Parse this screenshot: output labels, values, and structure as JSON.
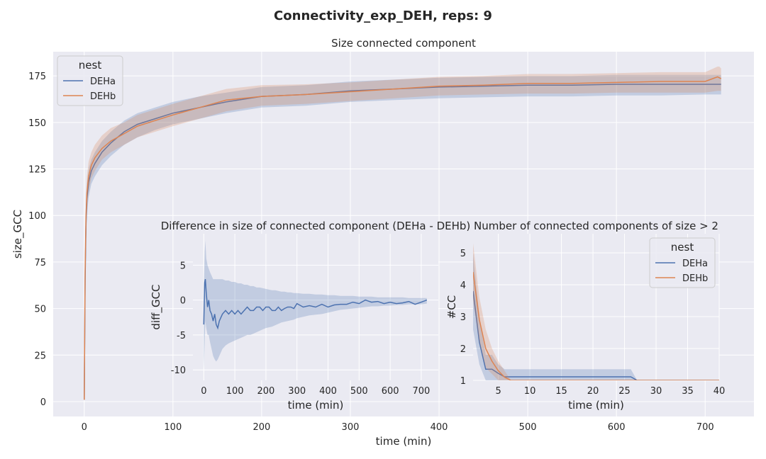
{
  "suptitle": "Connectivity_exp_DEH, reps: 9",
  "colors": {
    "DEHa": "#4c72b0",
    "DEHb": "#dd8452"
  },
  "chart_data": [
    {
      "id": "main",
      "type": "line",
      "title": "Size connected component",
      "xlabel": "time (min)",
      "ylabel": "size_GCC",
      "xlim": [
        -35,
        755
      ],
      "ylim": [
        -8,
        188
      ],
      "xticks": [
        0,
        100,
        200,
        300,
        400,
        500,
        600,
        700
      ],
      "yticks": [
        0,
        25,
        50,
        75,
        100,
        125,
        150,
        175
      ],
      "grid": true,
      "legend": {
        "title": "nest",
        "position": "top-left",
        "entries": [
          "DEHa",
          "DEHb"
        ]
      },
      "series": [
        {
          "name": "DEHa",
          "x": [
            0,
            1,
            2,
            3,
            5,
            8,
            12,
            20,
            30,
            45,
            60,
            80,
            100,
            130,
            160,
            200,
            250,
            300,
            350,
            400,
            450,
            500,
            550,
            600,
            650,
            700,
            718
          ],
          "y": [
            1,
            65,
            96,
            109,
            118,
            124,
            128,
            134,
            139,
            145,
            149,
            152,
            155,
            158,
            161,
            164,
            165,
            167,
            168,
            169,
            169.5,
            170,
            170,
            170.5,
            170.5,
            170.5,
            170.5
          ],
          "ci_low": [
            1,
            55,
            85,
            100,
            110,
            117,
            121,
            127,
            132,
            138,
            142,
            146,
            149,
            152,
            155,
            158,
            159,
            161,
            162,
            163,
            163.5,
            164,
            164,
            164.5,
            164.5,
            165,
            165
          ],
          "ci_high": [
            1,
            75,
            105,
            117,
            125,
            130,
            134,
            140,
            145,
            151,
            155,
            158,
            161,
            164,
            166,
            169,
            170,
            172,
            173,
            174,
            174.5,
            175,
            175,
            175.5,
            175.5,
            175.5,
            175.5
          ]
        },
        {
          "name": "DEHb",
          "x": [
            0,
            1,
            2,
            3,
            5,
            8,
            12,
            20,
            30,
            45,
            60,
            80,
            100,
            130,
            160,
            200,
            250,
            300,
            350,
            400,
            450,
            500,
            550,
            600,
            650,
            700,
            714,
            716,
            718
          ],
          "y": [
            1,
            70,
            100,
            112,
            121,
            127,
            131,
            136,
            140,
            144,
            148,
            151,
            154,
            158,
            162,
            164,
            165,
            166.5,
            168,
            169.5,
            170,
            171,
            171,
            171.5,
            172,
            172,
            174.5,
            174,
            173.5
          ],
          "ci_low": [
            1,
            60,
            90,
            103,
            113,
            120,
            124,
            130,
            134,
            138,
            142,
            145,
            148,
            152,
            156,
            159,
            160,
            161.5,
            163,
            164.5,
            165,
            165.5,
            165.5,
            166,
            166,
            166,
            167,
            167,
            167
          ],
          "ci_high": [
            1,
            80,
            110,
            121,
            129,
            134,
            138,
            143,
            147,
            150,
            154,
            157,
            160,
            164,
            168,
            170,
            170.5,
            171.5,
            173,
            174.5,
            175,
            176,
            176,
            176.5,
            177,
            177,
            180,
            180,
            179
          ]
        }
      ]
    },
    {
      "id": "diff",
      "type": "line",
      "title": "Difference in size of connected component (DEHa - DEHb)",
      "xlabel": "time (min)",
      "ylabel": "diff_GCC",
      "xlim": [
        -35,
        755
      ],
      "ylim": [
        -11.5,
        9.5
      ],
      "xticks": [
        0,
        100,
        200,
        300,
        400,
        500,
        600,
        700
      ],
      "yticks": [
        -10,
        -5,
        0,
        5
      ],
      "grid": true,
      "series": [
        {
          "name": "DEHa - DEHb",
          "x": [
            0,
            3,
            5,
            8,
            12,
            16,
            20,
            25,
            30,
            35,
            40,
            45,
            50,
            55,
            60,
            70,
            80,
            90,
            100,
            110,
            120,
            130,
            140,
            150,
            160,
            170,
            180,
            190,
            200,
            210,
            220,
            230,
            240,
            250,
            260,
            270,
            280,
            290,
            300,
            320,
            340,
            360,
            380,
            400,
            420,
            440,
            460,
            480,
            500,
            520,
            540,
            560,
            580,
            600,
            620,
            640,
            660,
            680,
            700,
            718
          ],
          "y": [
            -3.5,
            2.5,
            3,
            1,
            -1,
            0,
            -1.5,
            -2,
            -3,
            -2,
            -3.5,
            -4,
            -3,
            -2.5,
            -2,
            -1.5,
            -2,
            -1.5,
            -2,
            -1.5,
            -2,
            -1.5,
            -1,
            -1.5,
            -1.5,
            -1,
            -1,
            -1.5,
            -1,
            -1,
            -1.5,
            -1.5,
            -1,
            -1.5,
            -1.2,
            -1,
            -1,
            -1.2,
            -0.5,
            -1,
            -0.8,
            -1,
            -0.6,
            -1,
            -0.7,
            -0.6,
            -0.6,
            -0.3,
            -0.5,
            0,
            -0.3,
            -0.2,
            -0.5,
            -0.3,
            -0.5,
            -0.4,
            -0.2,
            -0.6,
            -0.3,
            0
          ],
          "ci_low": [
            -10,
            -6,
            -3,
            -4,
            -5,
            -5,
            -6,
            -7,
            -8,
            -8.5,
            -8.8,
            -8.5,
            -8,
            -7.5,
            -7,
            -6.5,
            -6.2,
            -6,
            -5.8,
            -5.6,
            -5.4,
            -5.2,
            -5,
            -5,
            -4.8,
            -4.6,
            -4.4,
            -4.2,
            -4,
            -3.9,
            -3.8,
            -3.6,
            -3.4,
            -3.2,
            -3.1,
            -3,
            -2.9,
            -2.8,
            -2.6,
            -2.4,
            -2.2,
            -2.1,
            -2,
            -1.8,
            -1.6,
            -1.4,
            -1.3,
            -1.2,
            -1.1,
            -1,
            -0.9,
            -0.9,
            -0.8,
            -0.8,
            -0.7,
            -0.7,
            -0.6,
            -0.6,
            -0.6,
            -0.5
          ],
          "ci_high": [
            2,
            7,
            8.5,
            6,
            5,
            4.5,
            4,
            3.5,
            3,
            3,
            3,
            3,
            3,
            3,
            3,
            2.8,
            2.8,
            2.6,
            2.6,
            2.4,
            2.4,
            2.2,
            2.2,
            2,
            2,
            1.8,
            1.8,
            1.7,
            1.6,
            1.5,
            1.4,
            1.4,
            1.3,
            1.2,
            1.2,
            1.1,
            1.1,
            1,
            1,
            0.9,
            0.9,
            0.8,
            0.8,
            0.7,
            0.7,
            0.6,
            0.6,
            0.6,
            0.5,
            0.5,
            0.5,
            0.4,
            0.4,
            0.4,
            0.4,
            0.4,
            0.3,
            0.3,
            0.3,
            0.3
          ]
        }
      ]
    },
    {
      "id": "cc",
      "type": "line",
      "title": "Number of connected components of size > 2",
      "xlabel": "time (min)",
      "ylabel": "#CC",
      "xlim": [
        1,
        40
      ],
      "ylim": [
        1,
        5.6
      ],
      "xticks": [
        5,
        10,
        15,
        20,
        25,
        30,
        35,
        40
      ],
      "yticks": [
        1,
        2,
        3,
        4,
        5
      ],
      "grid": true,
      "legend": {
        "title": "nest",
        "position": "top-right",
        "entries": [
          "DEHa",
          "DEHb"
        ]
      },
      "series": [
        {
          "name": "DEHa",
          "x": [
            1,
            2,
            3,
            4,
            5,
            6,
            26,
            27,
            40
          ],
          "y": [
            3.8,
            2.2,
            1.35,
            1.35,
            1.22,
            1.11,
            1.11,
            1,
            1
          ],
          "ci_low": [
            2.6,
            1.5,
            1.0,
            1.0,
            1.0,
            1.0,
            1.0,
            1.0,
            1
          ],
          "ci_high": [
            5.0,
            3.0,
            1.8,
            1.8,
            1.5,
            1.35,
            1.35,
            1.0,
            1
          ]
        },
        {
          "name": "DEHb",
          "x": [
            1,
            2,
            3,
            4,
            5,
            6,
            7,
            40
          ],
          "y": [
            4.4,
            2.9,
            2.0,
            1.6,
            1.3,
            1.1,
            1.0,
            1
          ],
          "ci_low": [
            3.5,
            2.2,
            1.4,
            1.2,
            1.0,
            1.0,
            1.0,
            1
          ],
          "ci_high": [
            5.3,
            3.6,
            2.6,
            2.0,
            1.6,
            1.3,
            1.0,
            1
          ]
        }
      ]
    }
  ]
}
